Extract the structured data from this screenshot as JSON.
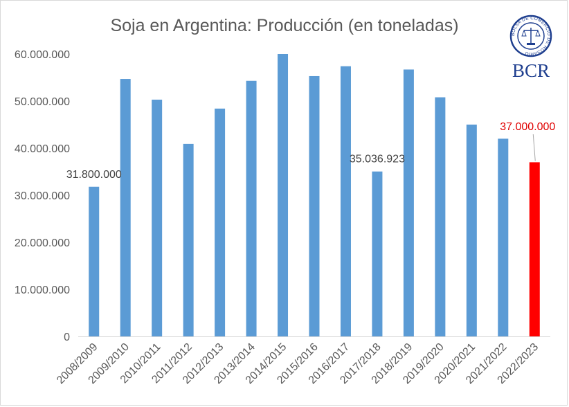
{
  "chart_data": {
    "type": "bar",
    "title": "Soja en Argentina: Producción (en toneladas)",
    "xlabel": "",
    "ylabel": "",
    "ylim": [
      0,
      60000000
    ],
    "ytick_values": [
      0,
      10000000,
      20000000,
      30000000,
      40000000,
      50000000,
      60000000
    ],
    "ytick_labels": [
      "0",
      "10.000.000",
      "20.000.000",
      "30.000.000",
      "40.000.000",
      "50.000.000",
      "60.000.000"
    ],
    "categories": [
      "2008/2009",
      "2009/2010",
      "2010/2011",
      "2011/2012",
      "2012/2013",
      "2013/2014",
      "2014/2015",
      "2015/2016",
      "2016/2017",
      "2017/2018",
      "2018/2019",
      "2019/2020",
      "2020/2021",
      "2021/2022",
      "2022/2023"
    ],
    "values": [
      31800000,
      54700000,
      50300000,
      40900000,
      48400000,
      54300000,
      60000000,
      55300000,
      57400000,
      35036923,
      56700000,
      50800000,
      45000000,
      42000000,
      37000000
    ],
    "data_labels": [
      {
        "category": "2008/2009",
        "text": "31.800.000"
      },
      {
        "category": "2017/2018",
        "text": "35.036.923"
      },
      {
        "category": "2022/2023",
        "text": "37.000.000"
      }
    ],
    "grid": false,
    "legend": "none",
    "colors": {
      "bar": "#5b9bd5",
      "highlight": "#ff0000",
      "highlight_label": "#e00000",
      "axis": "#d9d9d9",
      "text": "#595959"
    },
    "highlight_category": "2022/2023"
  },
  "logo": {
    "text": "BCR",
    "seal_text": "BOLSA DE COMERCIO DE ROSARIO",
    "color": "#1f3f8f"
  }
}
